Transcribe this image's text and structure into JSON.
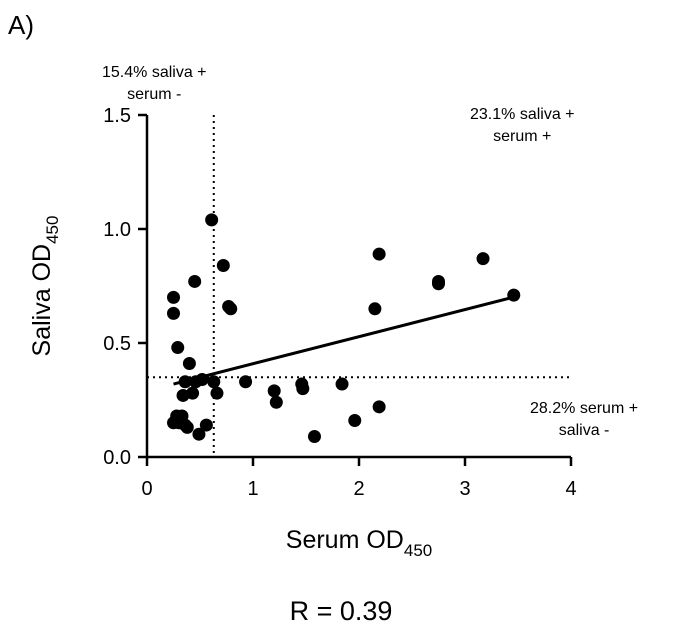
{
  "panel_label": "A)",
  "r_label": "R = 0.39",
  "annotations": {
    "top_left": [
      "15.4% saliva +",
      "serum -"
    ],
    "top_right": [
      "23.1% saliva +",
      "serum +"
    ],
    "bottom_right": [
      "28.2% serum +",
      "saliva -"
    ]
  },
  "chart_data": {
    "type": "scatter",
    "xlabel": "Serum OD",
    "xlabel_sub": "450",
    "ylabel": "Saliva OD",
    "ylabel_sub": "450",
    "xlim": [
      0,
      4
    ],
    "ylim": [
      0,
      1.5
    ],
    "x_ticks": [
      0,
      1,
      2,
      3,
      4
    ],
    "x_tick_labels": [
      "0",
      "1",
      "2",
      "3",
      "4"
    ],
    "y_ticks": [
      0,
      0.5,
      1.0,
      1.5
    ],
    "y_tick_labels": [
      "0.0",
      "0.5",
      "1.0",
      "1.5"
    ],
    "grid": false,
    "cutoffs": {
      "x": 0.63,
      "y": 0.35
    },
    "regression_line": {
      "x": [
        0.25,
        3.45
      ],
      "y": [
        0.32,
        0.7
      ]
    },
    "points": [
      {
        "x": 0.61,
        "y": 1.04
      },
      {
        "x": 0.72,
        "y": 0.84
      },
      {
        "x": 0.45,
        "y": 0.77
      },
      {
        "x": 0.25,
        "y": 0.7
      },
      {
        "x": 0.25,
        "y": 0.63
      },
      {
        "x": 0.77,
        "y": 0.66
      },
      {
        "x": 0.79,
        "y": 0.65
      },
      {
        "x": 0.29,
        "y": 0.48
      },
      {
        "x": 0.4,
        "y": 0.41
      },
      {
        "x": 0.36,
        "y": 0.33
      },
      {
        "x": 0.46,
        "y": 0.33
      },
      {
        "x": 0.52,
        "y": 0.34
      },
      {
        "x": 0.63,
        "y": 0.33
      },
      {
        "x": 0.34,
        "y": 0.27
      },
      {
        "x": 0.43,
        "y": 0.28
      },
      {
        "x": 0.66,
        "y": 0.28
      },
      {
        "x": 0.28,
        "y": 0.18
      },
      {
        "x": 0.33,
        "y": 0.18
      },
      {
        "x": 0.25,
        "y": 0.15
      },
      {
        "x": 0.36,
        "y": 0.14
      },
      {
        "x": 0.38,
        "y": 0.13
      },
      {
        "x": 0.56,
        "y": 0.14
      },
      {
        "x": 0.49,
        "y": 0.1
      },
      {
        "x": 0.93,
        "y": 0.33
      },
      {
        "x": 1.2,
        "y": 0.29
      },
      {
        "x": 1.22,
        "y": 0.24
      },
      {
        "x": 1.46,
        "y": 0.32
      },
      {
        "x": 1.47,
        "y": 0.3
      },
      {
        "x": 1.58,
        "y": 0.09
      },
      {
        "x": 1.84,
        "y": 0.32
      },
      {
        "x": 1.96,
        "y": 0.16
      },
      {
        "x": 2.19,
        "y": 0.89
      },
      {
        "x": 2.15,
        "y": 0.65
      },
      {
        "x": 2.19,
        "y": 0.22
      },
      {
        "x": 2.75,
        "y": 0.77
      },
      {
        "x": 2.75,
        "y": 0.76
      },
      {
        "x": 3.17,
        "y": 0.87
      },
      {
        "x": 3.46,
        "y": 0.71
      },
      {
        "x": 0.3,
        "y": 0.15
      }
    ]
  }
}
